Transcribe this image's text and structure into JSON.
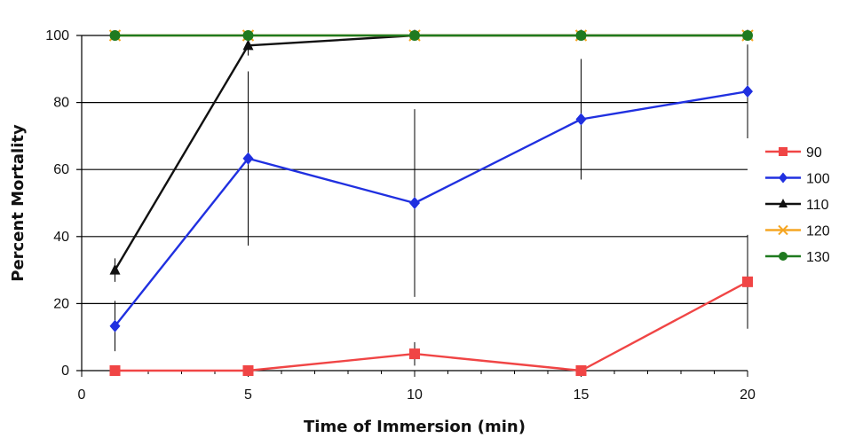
{
  "chart_data": {
    "type": "line",
    "xlabel": "Time of Immersion (min)",
    "ylabel": "Percent Mortality",
    "xlim": [
      0,
      20
    ],
    "ylim": [
      0,
      100
    ],
    "x_ticks": [
      "0",
      "5",
      "10",
      "15",
      "20"
    ],
    "y_ticks": [
      "0",
      "20",
      "40",
      "60",
      "80",
      "100"
    ],
    "grid": "horizontal",
    "legend_position": "right",
    "series": [
      {
        "name": "90",
        "color": "#f04545",
        "marker": "square",
        "points": [
          {
            "x": 1,
            "y": 0,
            "err": null
          },
          {
            "x": 5,
            "y": 0,
            "err": null
          },
          {
            "x": 10,
            "y": 5,
            "err": 3.5
          },
          {
            "x": 15,
            "y": 0,
            "err": null
          },
          {
            "x": 20,
            "y": 26.5,
            "err": 14
          }
        ]
      },
      {
        "name": "100",
        "color": "#2030e0",
        "marker": "diamond",
        "points": [
          {
            "x": 1,
            "y": 13.3,
            "err": 7.5
          },
          {
            "x": 5,
            "y": 63.3,
            "err": 26
          },
          {
            "x": 10,
            "y": 50,
            "err": 28
          },
          {
            "x": 15,
            "y": 75,
            "err": 18
          },
          {
            "x": 20,
            "y": 83.3,
            "err": 14
          }
        ]
      },
      {
        "name": "110",
        "color": "#111111",
        "marker": "triangle",
        "points": [
          {
            "x": 1,
            "y": 30,
            "err": 3.5
          },
          {
            "x": 5,
            "y": 97,
            "err": 3
          },
          {
            "x": 10,
            "y": 100,
            "err": null
          },
          {
            "x": 15,
            "y": 100,
            "err": null
          },
          {
            "x": 20,
            "y": 100,
            "err": null
          }
        ]
      },
      {
        "name": "120",
        "color": "#f5a623",
        "marker": "x",
        "points": [
          {
            "x": 1,
            "y": 100,
            "err": null
          },
          {
            "x": 5,
            "y": 100,
            "err": null
          },
          {
            "x": 10,
            "y": 100,
            "err": null
          },
          {
            "x": 15,
            "y": 100,
            "err": null
          },
          {
            "x": 20,
            "y": 100,
            "err": null
          }
        ]
      },
      {
        "name": "130",
        "color": "#1f7a1f",
        "marker": "circle",
        "points": [
          {
            "x": 1,
            "y": 100,
            "err": null
          },
          {
            "x": 5,
            "y": 100,
            "err": null
          },
          {
            "x": 10,
            "y": 100,
            "err": null
          },
          {
            "x": 15,
            "y": 100,
            "err": null
          },
          {
            "x": 20,
            "y": 100,
            "err": null
          }
        ]
      }
    ]
  }
}
